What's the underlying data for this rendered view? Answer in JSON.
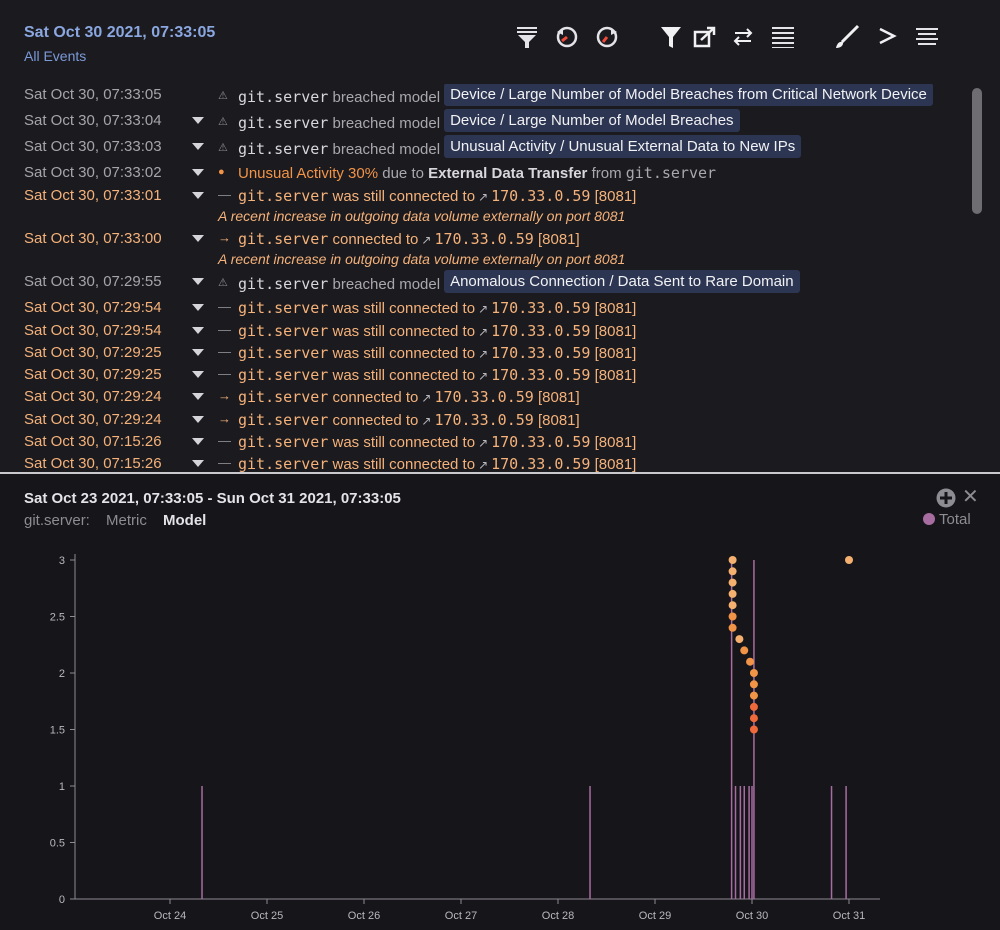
{
  "header": {
    "date": "Sat Oct 30 2021, 07:33:05",
    "filter": "All Events"
  },
  "toolbar": {
    "icons": [
      "filter-list-icon",
      "clock-rewind-icon",
      "clock-forward-icon",
      "funnel-icon",
      "open-external-icon",
      "swap-arrows-icon",
      "list-lines-icon",
      "brush-icon",
      "chevron-right-icon",
      "console-lines-icon"
    ]
  },
  "events": [
    {
      "time": "Sat Oct 30, 07:33:05",
      "style": "dim",
      "chevron": false,
      "icon": "model-breach-icon",
      "device": "git.server",
      "action": "breached model",
      "tag": "Device / Large Number of Model Breaches from Critical Network Device"
    },
    {
      "time": "Sat Oct 30, 07:33:04",
      "style": "dim",
      "chevron": true,
      "icon": "model-breach-icon",
      "device": "git.server",
      "action": "breached model",
      "tag": "Device / Large Number of Model Breaches"
    },
    {
      "time": "Sat Oct 30, 07:33:03",
      "style": "dim",
      "chevron": true,
      "icon": "model-breach-icon",
      "device": "git.server",
      "action": "breached model",
      "tag": "Unusual Activity / Unusual External Data to New IPs"
    },
    {
      "time": "Sat Oct 30, 07:33:02",
      "style": "dim",
      "chevron": true,
      "icon": "alert-dot-icon",
      "unusual": "Unusual Activity 30%",
      "due": "due to",
      "cause": "External Data Transfer",
      "from": "from",
      "device": "git.server"
    },
    {
      "time": "Sat Oct 30, 07:33:01",
      "style": "hl",
      "chevron": true,
      "icon": "dash-icon",
      "device": "git.server",
      "action": "was still connected to",
      "ip": "170.33.0.59",
      "port": "[8081]",
      "sub": "A recent increase in outgoing data volume externally on port 8081"
    },
    {
      "time": "Sat Oct 30, 07:33:00",
      "style": "hl",
      "chevron": true,
      "icon": "arrow-right-icon",
      "device": "git.server",
      "action": "connected to",
      "ip": "170.33.0.59",
      "port": "[8081]",
      "sub": "A recent increase in outgoing data volume externally on port 8081"
    },
    {
      "time": "Sat Oct 30, 07:29:55",
      "style": "dim",
      "chevron": true,
      "icon": "model-breach-icon",
      "device": "git.server",
      "action": "breached model",
      "tag": "Anomalous Connection / Data Sent to Rare Domain"
    },
    {
      "time": "Sat Oct 30, 07:29:54",
      "style": "hl",
      "chevron": true,
      "icon": "dash-icon",
      "device": "git.server",
      "action": "was still connected to",
      "ip": "170.33.0.59",
      "port": "[8081]"
    },
    {
      "time": "Sat Oct 30, 07:29:54",
      "style": "hl",
      "chevron": true,
      "icon": "dash-icon",
      "device": "git.server",
      "action": "was still connected to",
      "ip": "170.33.0.59",
      "port": "[8081]"
    },
    {
      "time": "Sat Oct 30, 07:29:25",
      "style": "hl",
      "chevron": true,
      "icon": "dash-icon",
      "device": "git.server",
      "action": "was still connected to",
      "ip": "170.33.0.59",
      "port": "[8081]"
    },
    {
      "time": "Sat Oct 30, 07:29:25",
      "style": "hl",
      "chevron": true,
      "icon": "dash-icon",
      "device": "git.server",
      "action": "was still connected to",
      "ip": "170.33.0.59",
      "port": "[8081]"
    },
    {
      "time": "Sat Oct 30, 07:29:24",
      "style": "hl",
      "chevron": true,
      "icon": "arrow-right-icon",
      "device": "git.server",
      "action": "connected to",
      "ip": "170.33.0.59",
      "port": "[8081]"
    },
    {
      "time": "Sat Oct 30, 07:29:24",
      "style": "hl",
      "chevron": true,
      "icon": "arrow-right-icon",
      "device": "git.server",
      "action": "connected to",
      "ip": "170.33.0.59",
      "port": "[8081]"
    },
    {
      "time": "Sat Oct 30, 07:15:26",
      "style": "hl",
      "chevron": true,
      "icon": "dash-icon",
      "device": "git.server",
      "action": "was still connected to",
      "ip": "170.33.0.59",
      "port": "[8081]"
    },
    {
      "time": "Sat Oct 30, 07:15:26",
      "style": "hl",
      "chevron": true,
      "icon": "dash-icon",
      "device": "git.server",
      "action": "was still connected to",
      "ip": "170.33.0.59",
      "port": "[8081]"
    }
  ],
  "graph": {
    "range": "Sat Oct 23 2021, 07:33:05 - Sun Oct 31 2021, 07:33:05",
    "device_label": "git.server:",
    "tab_metric": "Metric",
    "tab_model": "Model",
    "legend": "Total",
    "colors": {
      "line": "#a76ca0",
      "dot_light": "#f5b070",
      "dot_mid": "#f29447",
      "dot_dark": "#ee6a3c"
    }
  },
  "chart_data": {
    "type": "line",
    "x_ticks": [
      "Oct 24",
      "Oct 25",
      "Oct 26",
      "Oct 27",
      "Oct 28",
      "Oct 29",
      "Oct 30",
      "Oct 31"
    ],
    "y_ticks": [
      "0",
      "0.5",
      "1",
      "1.5",
      "2",
      "2.5",
      "3"
    ],
    "ylim": [
      0,
      3
    ],
    "series": [
      {
        "name": "Total",
        "spikes_x_days": [
          24.33,
          28.33,
          29.79,
          29.83,
          29.88,
          29.92,
          29.97,
          30.0,
          30.02,
          30.82,
          30.97
        ],
        "spikes_y": [
          1,
          1,
          3,
          1,
          1,
          1,
          1,
          1,
          3,
          1,
          1
        ]
      }
    ],
    "breach_dots": [
      {
        "x": 29.8,
        "y": 3.0
      },
      {
        "x": 29.8,
        "y": 2.9
      },
      {
        "x": 29.8,
        "y": 2.8
      },
      {
        "x": 29.8,
        "y": 2.7
      },
      {
        "x": 29.8,
        "y": 2.6
      },
      {
        "x": 29.8,
        "y": 2.5
      },
      {
        "x": 29.8,
        "y": 2.4
      },
      {
        "x": 29.87,
        "y": 2.3
      },
      {
        "x": 29.92,
        "y": 2.2
      },
      {
        "x": 29.98,
        "y": 2.1
      },
      {
        "x": 30.02,
        "y": 2.0
      },
      {
        "x": 30.02,
        "y": 1.9
      },
      {
        "x": 30.02,
        "y": 1.8
      },
      {
        "x": 30.02,
        "y": 1.7
      },
      {
        "x": 30.02,
        "y": 1.6
      },
      {
        "x": 30.02,
        "y": 1.5
      },
      {
        "x": 31.0,
        "y": 3.0
      }
    ]
  }
}
